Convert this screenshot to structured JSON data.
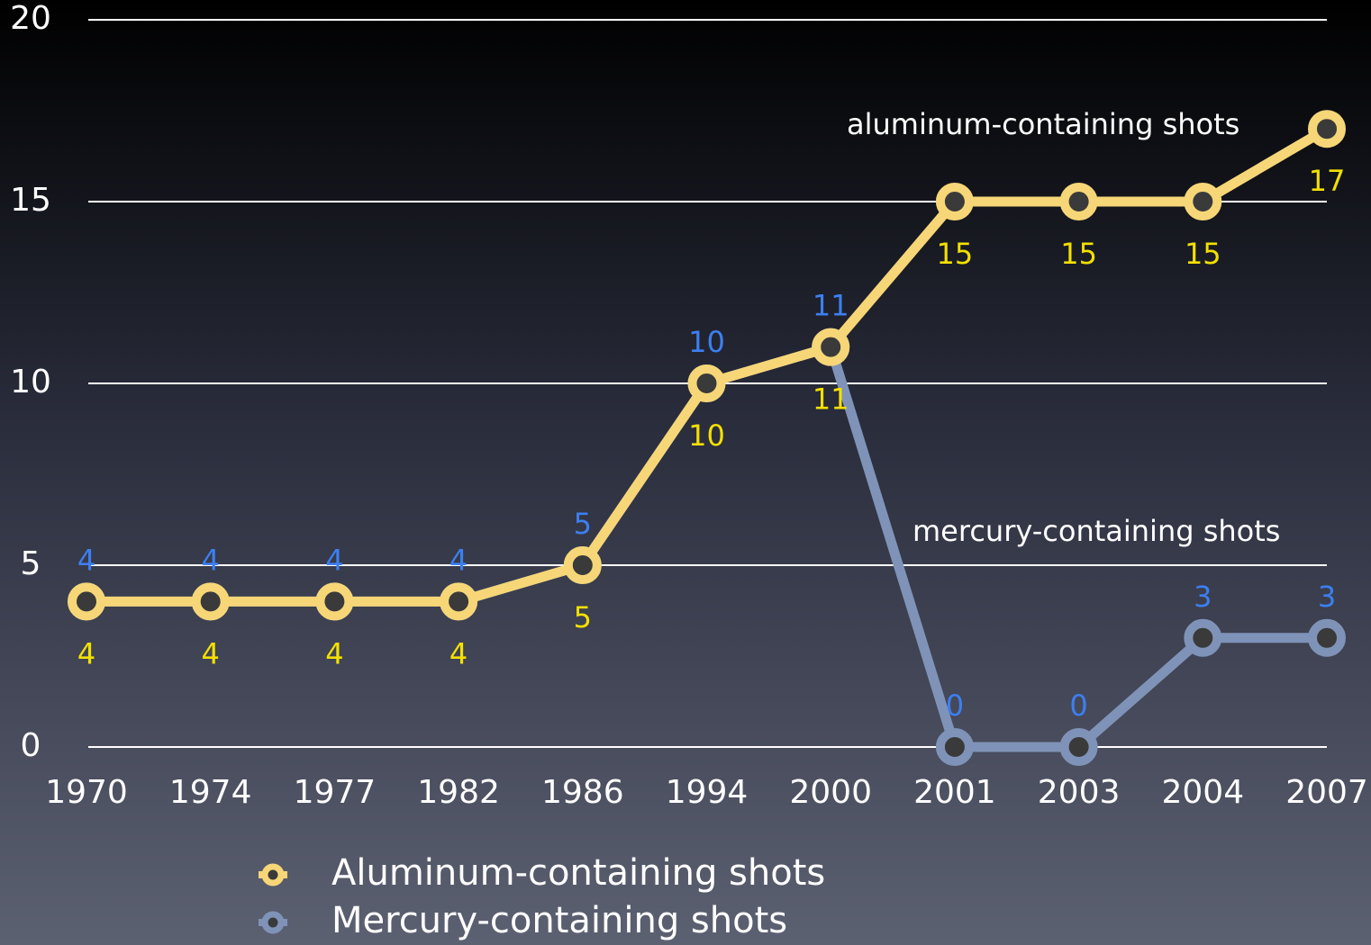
{
  "chart_data": {
    "type": "line",
    "categories": [
      "1970",
      "1974",
      "1977",
      "1982",
      "1986",
      "1994",
      "2000",
      "2001",
      "2003",
      "2004",
      "2007"
    ],
    "series": [
      {
        "name": "Mercury-containing shots",
        "color": "#7f93b8",
        "label_color": "#3d7ff0",
        "values": [
          4,
          4,
          4,
          4,
          5,
          10,
          11,
          0,
          0,
          3,
          3
        ]
      },
      {
        "name": "Aluminum-containing shots",
        "color": "#f6d677",
        "label_color": "#f3e000",
        "values": [
          4,
          4,
          4,
          4,
          5,
          10,
          11,
          15,
          15,
          15,
          17
        ]
      }
    ],
    "annotations": [
      "aluminum-containing shots",
      "mercury-containing shots"
    ],
    "ylim": [
      0,
      20
    ],
    "yticks": [
      0,
      5,
      10,
      15,
      20
    ],
    "grid": true
  }
}
